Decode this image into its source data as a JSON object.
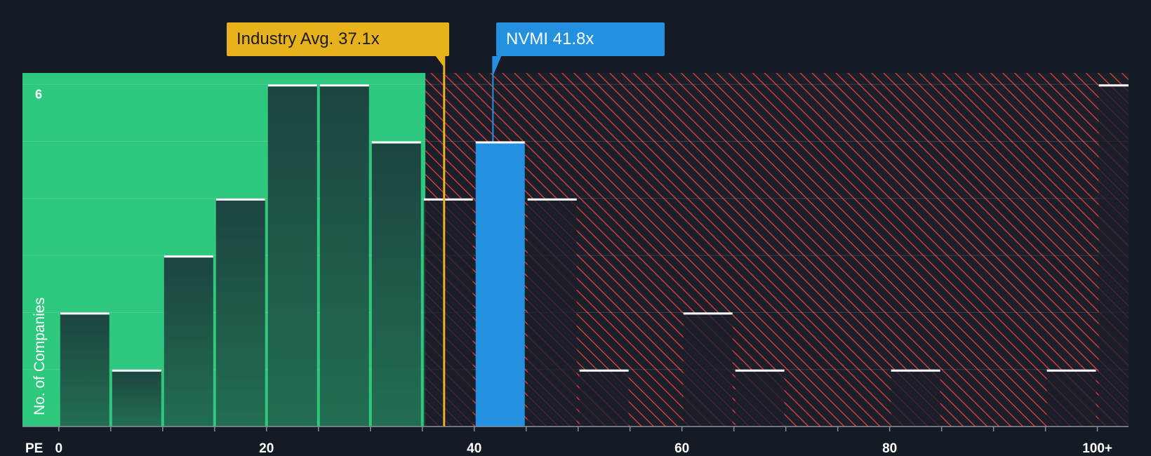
{
  "chart_data": {
    "type": "bar",
    "metric": "PE",
    "x_axis_label": "PE",
    "y_axis_label": "No. of Companies",
    "y_tick_labels": [
      "6"
    ],
    "ylim": [
      0,
      6.2
    ],
    "bin_width": 5,
    "xlim": [
      -3.5,
      103
    ],
    "x_ticks": [
      {
        "value": 0,
        "label": "0"
      },
      {
        "value": 20,
        "label": "20"
      },
      {
        "value": 40,
        "label": "40"
      },
      {
        "value": 60,
        "label": "60"
      },
      {
        "value": 80,
        "label": "80"
      },
      {
        "value": 100,
        "label": "100+"
      }
    ],
    "bins": [
      {
        "start": 0,
        "count": 2
      },
      {
        "start": 5,
        "count": 1
      },
      {
        "start": 10,
        "count": 3
      },
      {
        "start": 15,
        "count": 4
      },
      {
        "start": 20,
        "count": 6
      },
      {
        "start": 25,
        "count": 6
      },
      {
        "start": 30,
        "count": 5
      },
      {
        "start": 35,
        "count": 4
      },
      {
        "start": 40,
        "count": 5
      },
      {
        "start": 45,
        "count": 4
      },
      {
        "start": 50,
        "count": 1
      },
      {
        "start": 55,
        "count": 0
      },
      {
        "start": 60,
        "count": 2
      },
      {
        "start": 65,
        "count": 1
      },
      {
        "start": 70,
        "count": 0
      },
      {
        "start": 75,
        "count": 0
      },
      {
        "start": 80,
        "count": 1
      },
      {
        "start": 85,
        "count": 0
      },
      {
        "start": 90,
        "count": 0
      },
      {
        "start": 95,
        "count": 1
      },
      {
        "start": 100,
        "count": 6
      }
    ],
    "fair_range_max": 35.3,
    "industry_average": {
      "value": 37.1,
      "label": "Industry Avg. 37.1x"
    },
    "company": {
      "ticker": "NVMI",
      "value": 41.8,
      "label": "NVMI 41.8x",
      "bin_start": 40
    },
    "colors": {
      "background": "#151b24",
      "fair_zone": "#2ec87e",
      "bar_fill": "#1e4a40",
      "overvalued_hatch": "#d23a3a",
      "company_bar": "#2490e0",
      "industry_line": "#e8b21d",
      "bar_cap": "#ffffff"
    }
  }
}
